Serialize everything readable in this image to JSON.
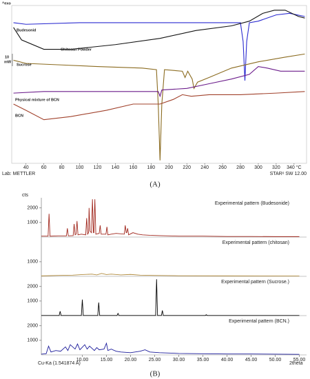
{
  "chart_data": [
    {
      "type": "line",
      "header": "^exo",
      "scale_bar": [
        "10",
        "mW"
      ],
      "footer_left": "Lab: METTLER",
      "footer_right": "STARᵉ SW 12.00",
      "caption": "(A)",
      "xlim": [
        24,
        354
      ],
      "xticks": [
        40,
        60,
        80,
        100,
        120,
        140,
        160,
        180,
        200,
        220,
        240,
        260,
        280,
        300,
        320,
        {
          "value": 340,
          "label": "340 °C"
        }
      ],
      "ylim": [
        0,
        100
      ],
      "series": [
        {
          "name": "Budesonid",
          "color": "#2a2ad0",
          "x": [
            26,
            40,
            100,
            200,
            260,
            280,
            283,
            285,
            287,
            290,
            300,
            320,
            335,
            352
          ],
          "values": [
            89,
            88,
            89,
            89,
            89,
            89,
            77,
            52,
            77,
            89,
            90,
            94,
            95,
            93
          ]
        },
        {
          "name": "Chitosan Powder",
          "color": "#111111",
          "x": [
            26,
            35,
            60,
            90,
            140,
            190,
            230,
            270,
            290,
            305,
            318,
            330,
            345,
            352
          ],
          "values": [
            86,
            78,
            72,
            72,
            75,
            79,
            84,
            87,
            90,
            95,
            97,
            97,
            93,
            92
          ]
        },
        {
          "name": "Sucrose",
          "color": "#8a6a1e",
          "x": [
            26,
            40,
            80,
            120,
            170,
            186,
            188,
            190,
            192,
            195,
            215,
            218,
            221,
            226,
            228,
            232,
            245,
            270,
            300,
            330,
            352
          ],
          "values": [
            65,
            63,
            62,
            61,
            60,
            59,
            37,
            1,
            37,
            59,
            58,
            54,
            58,
            53,
            47,
            51,
            54,
            60,
            64,
            67,
            69
          ]
        },
        {
          "name": "Physical mixture of BCN",
          "color": "#6a1a8a",
          "x": [
            26,
            60,
            120,
            170,
            188,
            190,
            192,
            220,
            245,
            270,
            290,
            300,
            310,
            325,
            352
          ],
          "values": [
            44,
            45,
            45,
            45,
            45,
            42,
            46,
            47,
            50,
            53,
            56,
            61,
            60,
            58,
            58
          ]
        },
        {
          "name": "BCN",
          "color": "#a0402a",
          "x": [
            26,
            40,
            60,
            90,
            130,
            160,
            175,
            190,
            205,
            215,
            225,
            245,
            280,
            320,
            352
          ],
          "values": [
            37,
            33,
            27,
            29,
            33,
            37,
            37,
            37,
            40,
            43,
            42,
            43,
            43,
            44,
            45
          ]
        }
      ]
    },
    {
      "type": "line",
      "y_label": "cts",
      "x_label": "2theta",
      "source": "Cu-Ka (1.541874 A)",
      "caption": "(B)",
      "xlim": [
        1.5,
        56.5
      ],
      "xticks": [
        {
          "value": 10,
          "label": "10.00"
        },
        {
          "value": 15,
          "label": "15.00"
        },
        {
          "value": 20,
          "label": "20.00"
        },
        {
          "value": 25,
          "label": "25.00"
        },
        {
          "value": 30,
          "label": "30.00"
        },
        {
          "value": 35,
          "label": "35.00"
        },
        {
          "value": 40,
          "label": "40.00"
        },
        {
          "value": 45,
          "label": "45.00"
        },
        {
          "value": 50,
          "label": "50.00"
        },
        {
          "value": 55,
          "label": "55.00"
        }
      ],
      "panels": [
        {
          "name": "Experimental pattern (Budesonide)",
          "color": "#a0261c",
          "ylim": [
            0,
            2700
          ],
          "yticks": [
            1000,
            2000
          ],
          "x": [
            1.5,
            2.9,
            3.1,
            3.3,
            5,
            6.7,
            6.9,
            7.1,
            8.1,
            8.3,
            8.5,
            8.7,
            8.9,
            9.1,
            9.8,
            10.7,
            10.9,
            11.1,
            11.3,
            11.4,
            11.6,
            11.9,
            12.1,
            12.3,
            12.4,
            12.6,
            12.8,
            13.5,
            13.7,
            13.9,
            14.9,
            15.1,
            15.3,
            16,
            17,
            18.7,
            18.9,
            19.1,
            19.2,
            19.4,
            19.6,
            20.5,
            21.5,
            22.5,
            24,
            26,
            30,
            35,
            40,
            45,
            50,
            55
          ],
          "values": [
            60,
            60,
            1600,
            60,
            80,
            80,
            600,
            80,
            100,
            900,
            150,
            200,
            1100,
            150,
            200,
            150,
            1300,
            200,
            300,
            2000,
            400,
            300,
            2600,
            300,
            300,
            2600,
            200,
            250,
            800,
            200,
            200,
            700,
            150,
            200,
            250,
            200,
            800,
            300,
            300,
            600,
            150,
            300,
            200,
            150,
            120,
            100,
            60,
            60,
            40,
            40,
            30,
            30
          ]
        },
        {
          "name": "Experimental pattern (chitosan)",
          "color": "#b08a3c",
          "ylim": [
            0,
            2700
          ],
          "yticks": [
            1000
          ],
          "x": [
            1.5,
            5,
            8,
            10,
            12,
            13,
            14,
            15,
            16,
            18,
            20,
            22,
            25,
            30,
            40,
            55
          ],
          "values": [
            30,
            60,
            80,
            120,
            150,
            100,
            200,
            120,
            150,
            100,
            130,
            80,
            60,
            40,
            30,
            20
          ]
        },
        {
          "name": "Experimental pattern (Sucrose.)",
          "color": "#000000",
          "ylim": [
            0,
            2700
          ],
          "yticks": [
            1000,
            2000
          ],
          "x": [
            1.5,
            5.2,
            5.4,
            5.6,
            9.8,
            10,
            10.2,
            13.2,
            13.4,
            13.6,
            17.2,
            17.4,
            17.6,
            25.2,
            25.4,
            25.6,
            26.4,
            26.6,
            26.8,
            35.5,
            35.7,
            35.9,
            55
          ],
          "values": [
            10,
            10,
            300,
            10,
            10,
            1100,
            10,
            10,
            900,
            10,
            10,
            150,
            10,
            10,
            2500,
            10,
            10,
            350,
            10,
            10,
            60,
            10,
            10
          ]
        },
        {
          "name": "Experimental pattern (BCN.)",
          "color": "#1a1a9a",
          "ylim": [
            0,
            2700
          ],
          "yticks": [
            1000,
            2000
          ],
          "x": [
            1.5,
            2.5,
            3,
            3.5,
            4.5,
            5.5,
            6.5,
            7,
            7.5,
            8.5,
            9,
            9.5,
            10.5,
            11,
            11.5,
            12.5,
            13,
            13.5,
            14.5,
            15,
            15.3,
            16,
            17,
            18,
            20,
            22,
            23,
            24,
            26,
            30,
            35,
            40,
            45,
            50,
            55
          ],
          "values": [
            50,
            80,
            600,
            200,
            300,
            250,
            550,
            300,
            700,
            400,
            750,
            350,
            700,
            400,
            600,
            300,
            500,
            350,
            400,
            800,
            300,
            400,
            250,
            200,
            150,
            250,
            350,
            200,
            150,
            100,
            80,
            60,
            60,
            50,
            40
          ]
        }
      ]
    }
  ]
}
